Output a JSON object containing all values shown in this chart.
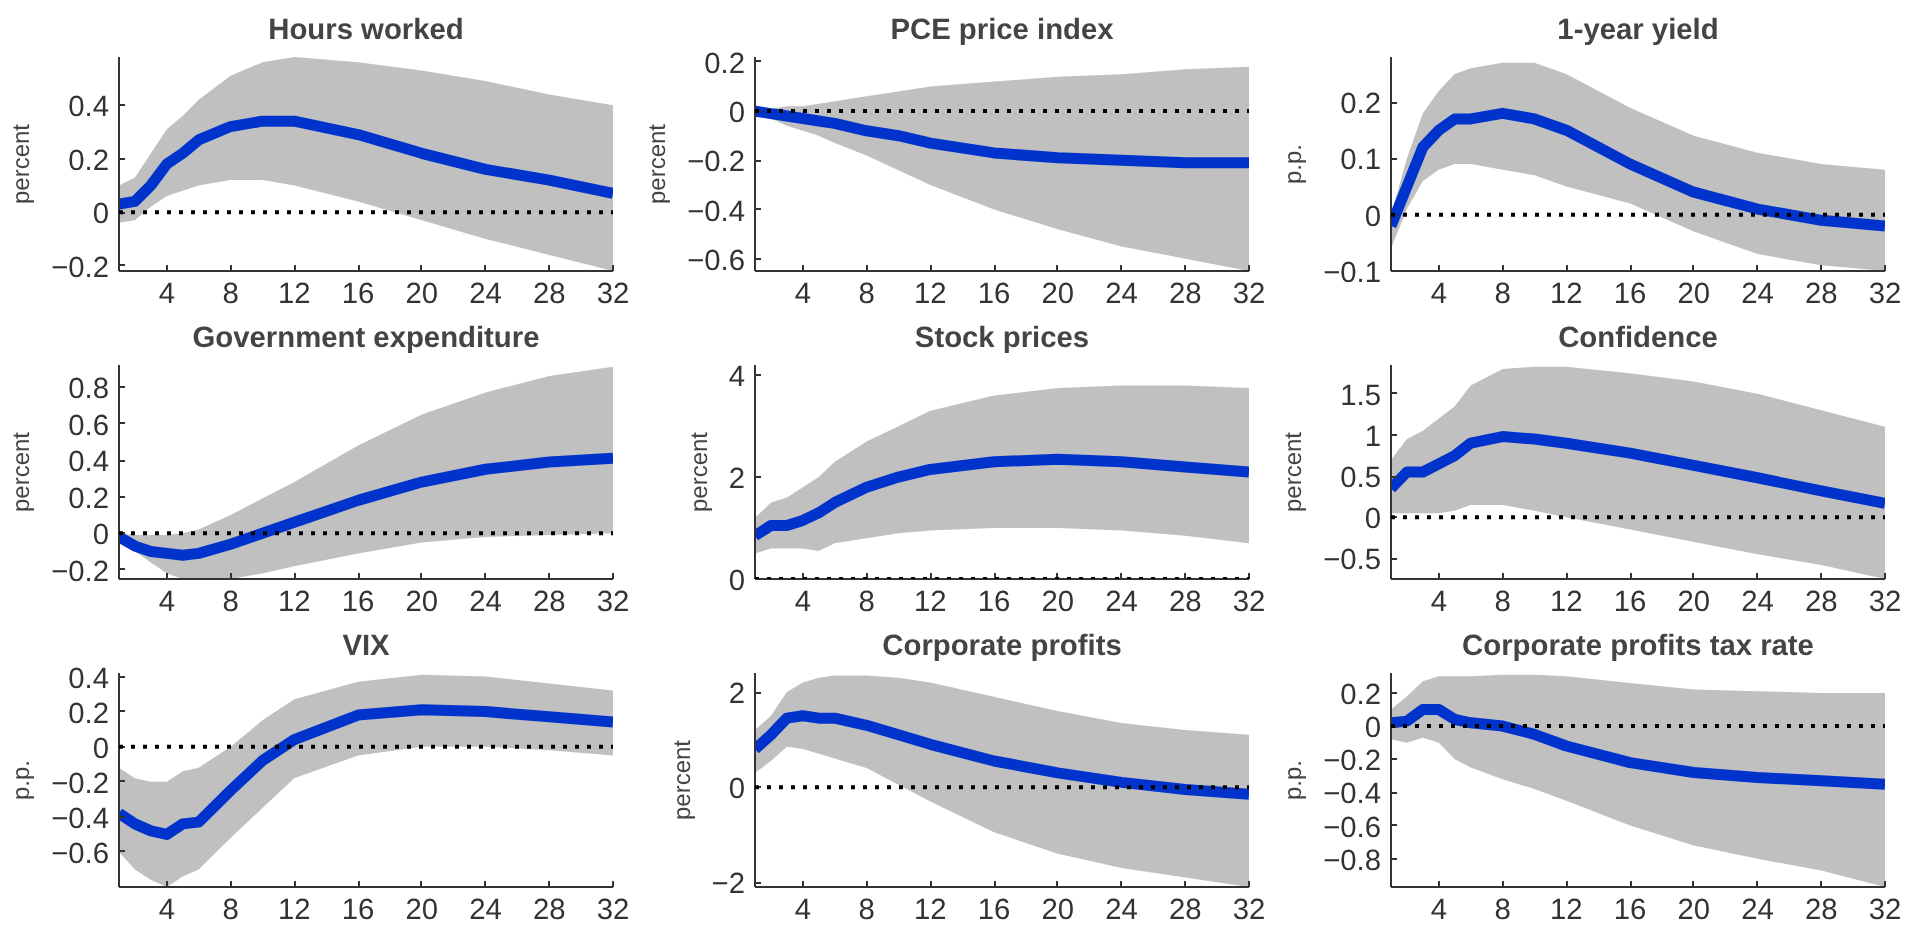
{
  "chart_data": [
    {
      "type": "line",
      "title": "Hours worked",
      "ylabel": "percent",
      "x": [
        1,
        2,
        3,
        4,
        5,
        6,
        8,
        10,
        12,
        16,
        20,
        24,
        28,
        32
      ],
      "xlim": [
        1,
        32
      ],
      "xticks": [
        4,
        8,
        12,
        16,
        20,
        24,
        28,
        32
      ],
      "ylim": [
        -0.22,
        0.58
      ],
      "yticks": [
        -0.2,
        0,
        0.2,
        0.4
      ],
      "grid": false,
      "series": [
        {
          "color": "#0033cc",
          "values": [
            0.03,
            0.04,
            0.1,
            0.18,
            0.22,
            0.27,
            0.32,
            0.34,
            0.34,
            0.29,
            0.22,
            0.16,
            0.12,
            0.07
          ],
          "upper": [
            0.1,
            0.13,
            0.22,
            0.31,
            0.36,
            0.42,
            0.51,
            0.56,
            0.58,
            0.56,
            0.53,
            0.49,
            0.44,
            0.4
          ],
          "lower": [
            -0.04,
            -0.03,
            0.02,
            0.06,
            0.08,
            0.1,
            0.12,
            0.12,
            0.1,
            0.04,
            -0.03,
            -0.1,
            -0.16,
            -0.22
          ]
        }
      ],
      "ref_lines": [
        {
          "axis": "y",
          "value": 0,
          "color": "#000000",
          "line_style": "dotted"
        }
      ]
    },
    {
      "type": "line",
      "title": "PCE price index",
      "ylabel": "percent",
      "x": [
        1,
        2,
        3,
        4,
        5,
        6,
        8,
        10,
        12,
        16,
        20,
        24,
        28,
        32
      ],
      "xlim": [
        1,
        32
      ],
      "xticks": [
        4,
        8,
        12,
        16,
        20,
        24,
        28,
        32
      ],
      "ylim": [
        -0.65,
        0.22
      ],
      "yticks": [
        -0.6,
        -0.4,
        -0.2,
        0,
        0.2
      ],
      "grid": false,
      "series": [
        {
          "color": "#0033cc",
          "values": [
            0,
            -0.01,
            -0.02,
            -0.03,
            -0.04,
            -0.05,
            -0.08,
            -0.1,
            -0.13,
            -0.17,
            -0.19,
            -0.2,
            -0.21,
            -0.21
          ],
          "upper": [
            0.01,
            0.01,
            0.02,
            0.02,
            0.03,
            0.04,
            0.06,
            0.08,
            0.1,
            0.12,
            0.14,
            0.15,
            0.17,
            0.18
          ],
          "lower": [
            -0.01,
            -0.03,
            -0.06,
            -0.08,
            -0.1,
            -0.13,
            -0.18,
            -0.24,
            -0.3,
            -0.4,
            -0.48,
            -0.55,
            -0.6,
            -0.65
          ]
        }
      ],
      "ref_lines": [
        {
          "axis": "y",
          "value": 0,
          "color": "#000000",
          "line_style": "dotted"
        }
      ]
    },
    {
      "type": "line",
      "title": "1-year yield",
      "ylabel": "p.p.",
      "x": [
        1,
        2,
        3,
        4,
        5,
        6,
        8,
        10,
        12,
        16,
        20,
        24,
        28,
        32
      ],
      "xlim": [
        1,
        32
      ],
      "xticks": [
        4,
        8,
        12,
        16,
        20,
        24,
        28,
        32
      ],
      "ylim": [
        -0.1,
        0.28
      ],
      "yticks": [
        -0.1,
        0,
        0.1,
        0.2
      ],
      "grid": false,
      "series": [
        {
          "color": "#0033cc",
          "values": [
            -0.02,
            0.05,
            0.12,
            0.15,
            0.17,
            0.17,
            0.18,
            0.17,
            0.15,
            0.09,
            0.04,
            0.01,
            -0.01,
            -0.02
          ],
          "upper": [
            0,
            0.1,
            0.18,
            0.22,
            0.25,
            0.26,
            0.27,
            0.27,
            0.25,
            0.19,
            0.14,
            0.11,
            0.09,
            0.08
          ],
          "lower": [
            -0.06,
            0.01,
            0.06,
            0.08,
            0.09,
            0.09,
            0.08,
            0.07,
            0.05,
            0.02,
            -0.03,
            -0.07,
            -0.09,
            -0.1
          ]
        }
      ],
      "ref_lines": [
        {
          "axis": "y",
          "value": 0,
          "color": "#000000",
          "line_style": "dotted"
        }
      ]
    },
    {
      "type": "line",
      "title": "Government expenditure",
      "ylabel": "percent",
      "x": [
        1,
        2,
        3,
        4,
        5,
        6,
        8,
        10,
        12,
        16,
        20,
        24,
        28,
        32
      ],
      "xlim": [
        1,
        32
      ],
      "xticks": [
        4,
        8,
        12,
        16,
        20,
        24,
        28,
        32
      ],
      "ylim": [
        -0.25,
        0.92
      ],
      "yticks": [
        -0.2,
        0,
        0.2,
        0.4,
        0.6,
        0.8
      ],
      "grid": false,
      "series": [
        {
          "color": "#0033cc",
          "values": [
            -0.02,
            -0.07,
            -0.1,
            -0.11,
            -0.12,
            -0.11,
            -0.06,
            0,
            0.06,
            0.18,
            0.28,
            0.35,
            0.39,
            0.41
          ],
          "upper": [
            0,
            -0.01,
            -0.01,
            -0.01,
            0,
            0.02,
            0.1,
            0.19,
            0.28,
            0.48,
            0.65,
            0.77,
            0.86,
            0.91
          ],
          "lower": [
            -0.04,
            -0.1,
            -0.16,
            -0.22,
            -0.25,
            -0.25,
            -0.25,
            -0.22,
            -0.18,
            -0.11,
            -0.05,
            -0.02,
            -0.01,
            0
          ]
        }
      ],
      "ref_lines": [
        {
          "axis": "y",
          "value": 0,
          "color": "#000000",
          "line_style": "dotted"
        }
      ]
    },
    {
      "type": "line",
      "title": "Stock prices",
      "ylabel": "percent",
      "x": [
        1,
        2,
        3,
        4,
        5,
        6,
        8,
        10,
        12,
        16,
        20,
        24,
        28,
        32
      ],
      "xlim": [
        1,
        32
      ],
      "xticks": [
        4,
        8,
        12,
        16,
        20,
        24,
        28,
        32
      ],
      "ylim": [
        0,
        4.2
      ],
      "yticks": [
        0,
        2,
        4
      ],
      "grid": false,
      "series": [
        {
          "color": "#0033cc",
          "values": [
            0.85,
            1.05,
            1.05,
            1.15,
            1.3,
            1.5,
            1.8,
            2.0,
            2.15,
            2.3,
            2.35,
            2.3,
            2.2,
            2.1
          ],
          "upper": [
            1.2,
            1.5,
            1.6,
            1.8,
            2.0,
            2.3,
            2.7,
            3.0,
            3.3,
            3.6,
            3.75,
            3.8,
            3.8,
            3.75
          ],
          "lower": [
            0.5,
            0.6,
            0.6,
            0.6,
            0.55,
            0.7,
            0.8,
            0.9,
            0.95,
            1.0,
            1.0,
            0.95,
            0.85,
            0.7
          ]
        }
      ],
      "ref_lines": [
        {
          "axis": "y",
          "value": 0,
          "color": "#000000",
          "line_style": "dotted"
        }
      ]
    },
    {
      "type": "line",
      "title": "Confidence",
      "ylabel": "percent",
      "x": [
        1,
        2,
        3,
        4,
        5,
        6,
        8,
        10,
        12,
        16,
        20,
        24,
        28,
        32
      ],
      "xlim": [
        1,
        32
      ],
      "xticks": [
        4,
        8,
        12,
        16,
        20,
        24,
        28,
        32
      ],
      "ylim": [
        -0.75,
        1.85
      ],
      "yticks": [
        -0.5,
        0,
        0.5,
        1,
        1.5
      ],
      "grid": false,
      "series": [
        {
          "color": "#0033cc",
          "values": [
            0.35,
            0.55,
            0.55,
            0.65,
            0.75,
            0.9,
            0.98,
            0.95,
            0.9,
            0.78,
            0.63,
            0.48,
            0.32,
            0.17
          ],
          "upper": [
            0.7,
            0.95,
            1.05,
            1.2,
            1.35,
            1.6,
            1.8,
            1.83,
            1.83,
            1.75,
            1.65,
            1.5,
            1.3,
            1.1
          ],
          "lower": [
            0.05,
            0.05,
            0.05,
            0.05,
            0.08,
            0.15,
            0.15,
            0.08,
            0.0,
            -0.15,
            -0.3,
            -0.45,
            -0.58,
            -0.75
          ]
        }
      ],
      "ref_lines": [
        {
          "axis": "y",
          "value": 0,
          "color": "#000000",
          "line_style": "dotted"
        }
      ]
    },
    {
      "type": "line",
      "title": "VIX",
      "ylabel": "p.p.",
      "x": [
        1,
        2,
        3,
        4,
        5,
        6,
        8,
        10,
        12,
        16,
        20,
        24,
        28,
        32
      ],
      "xlim": [
        1,
        32
      ],
      "xticks": [
        4,
        8,
        12,
        16,
        20,
        24,
        28,
        32
      ],
      "ylim": [
        -0.8,
        0.42
      ],
      "yticks": [
        -0.6,
        -0.4,
        -0.2,
        0,
        0.2,
        0.4
      ],
      "grid": false,
      "series": [
        {
          "color": "#0033cc",
          "values": [
            -0.38,
            -0.44,
            -0.48,
            -0.5,
            -0.44,
            -0.43,
            -0.25,
            -0.08,
            0.04,
            0.18,
            0.21,
            0.2,
            0.17,
            0.14
          ],
          "upper": [
            -0.12,
            -0.18,
            -0.2,
            -0.2,
            -0.14,
            -0.12,
            0,
            0.15,
            0.27,
            0.37,
            0.41,
            0.4,
            0.36,
            0.32
          ],
          "lower": [
            -0.6,
            -0.7,
            -0.76,
            -0.8,
            -0.74,
            -0.7,
            -0.52,
            -0.35,
            -0.18,
            -0.05,
            0,
            0,
            -0.02,
            -0.05
          ]
        }
      ],
      "ref_lines": [
        {
          "axis": "y",
          "value": 0,
          "color": "#000000",
          "line_style": "dotted"
        }
      ]
    },
    {
      "type": "line",
      "title": "Corporate profits",
      "ylabel": "percent",
      "x": [
        1,
        2,
        3,
        4,
        5,
        6,
        8,
        10,
        12,
        16,
        20,
        24,
        28,
        32
      ],
      "xlim": [
        1,
        32
      ],
      "xticks": [
        4,
        8,
        12,
        16,
        20,
        24,
        28,
        32
      ],
      "ylim": [
        -2.1,
        2.4
      ],
      "yticks": [
        -2,
        0,
        2
      ],
      "grid": false,
      "series": [
        {
          "color": "#0033cc",
          "values": [
            0.8,
            1.1,
            1.45,
            1.5,
            1.45,
            1.45,
            1.3,
            1.1,
            0.9,
            0.55,
            0.3,
            0.1,
            -0.05,
            -0.15
          ],
          "upper": [
            1.2,
            1.5,
            2.0,
            2.2,
            2.3,
            2.35,
            2.35,
            2.3,
            2.2,
            1.9,
            1.6,
            1.35,
            1.2,
            1.1
          ],
          "lower": [
            0.3,
            0.55,
            0.85,
            0.8,
            0.7,
            0.6,
            0.4,
            0.05,
            -0.3,
            -0.95,
            -1.4,
            -1.7,
            -1.9,
            -2.1
          ]
        }
      ],
      "ref_lines": [
        {
          "axis": "y",
          "value": 0,
          "color": "#000000",
          "line_style": "dotted"
        }
      ]
    },
    {
      "type": "line",
      "title": "Corporate profits tax rate",
      "ylabel": "p.p.",
      "x": [
        1,
        2,
        3,
        4,
        5,
        6,
        8,
        10,
        12,
        16,
        20,
        24,
        28,
        32
      ],
      "xlim": [
        1,
        32
      ],
      "xticks": [
        4,
        8,
        12,
        16,
        20,
        24,
        28,
        32
      ],
      "ylim": [
        -0.97,
        0.32
      ],
      "yticks": [
        -0.8,
        -0.6,
        -0.4,
        -0.2,
        0,
        0.2
      ],
      "grid": false,
      "series": [
        {
          "color": "#0033cc",
          "values": [
            0.02,
            0.03,
            0.1,
            0.1,
            0.04,
            0.02,
            0,
            -0.05,
            -0.12,
            -0.22,
            -0.28,
            -0.31,
            -0.33,
            -0.35
          ],
          "upper": [
            0.1,
            0.18,
            0.27,
            0.3,
            0.3,
            0.3,
            0.31,
            0.31,
            0.3,
            0.26,
            0.22,
            0.21,
            0.2,
            0.2
          ],
          "lower": [
            -0.08,
            -0.1,
            -0.07,
            -0.1,
            -0.2,
            -0.25,
            -0.32,
            -0.38,
            -0.45,
            -0.6,
            -0.72,
            -0.8,
            -0.87,
            -0.97
          ]
        }
      ],
      "ref_lines": [
        {
          "axis": "y",
          "value": 0,
          "color": "#000000",
          "line_style": "dotted"
        }
      ]
    }
  ]
}
